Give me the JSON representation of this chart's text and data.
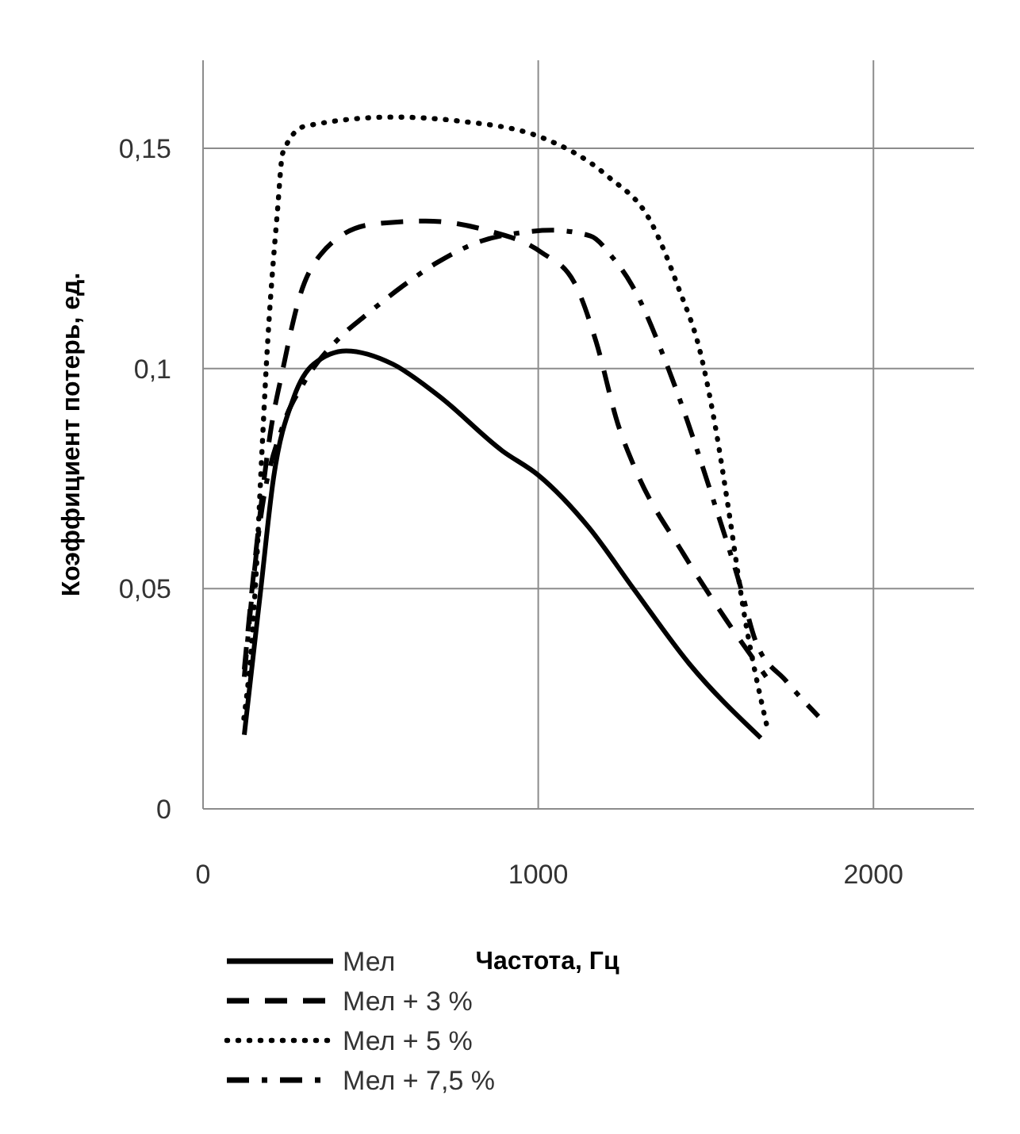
{
  "chart_data": {
    "type": "line",
    "xlabel": "Частота, Гц",
    "ylabel": "Коэффициент потерь, ед.",
    "xlim": [
      0,
      2300
    ],
    "xticks": [
      0,
      1000,
      2000
    ],
    "ylim": [
      0,
      0.17
    ],
    "yticks": [
      0,
      {
        "value": 0.05,
        "label": "0,05"
      },
      {
        "value": 0.1,
        "label": "0,1"
      },
      {
        "value": 0.15,
        "label": "0,15"
      }
    ],
    "grid": true,
    "legend": "bottom",
    "series": [
      {
        "name": "Мел",
        "color": "#000000",
        "line_style": "solid",
        "x": [
          123,
          150,
          172,
          210,
          271,
          330,
          427,
          566,
          700,
          893,
          1000,
          1150,
          1287,
          1450,
          1664
        ],
        "values": [
          0.0168,
          0.035,
          0.0497,
          0.075,
          0.0935,
          0.101,
          0.104,
          0.101,
          0.094,
          0.0813,
          0.0758,
          0.064,
          0.0497,
          0.033,
          0.0161
        ]
      },
      {
        "name": "Мел + 3 %",
        "color": "#000000",
        "line_style": "dashed",
        "x": [
          123,
          160,
          200,
          238,
          287,
          352,
          500,
          664,
          845,
          1009,
          1107,
          1173,
          1238,
          1287,
          1435,
          1560,
          1680
        ],
        "values": [
          0.0317,
          0.06,
          0.085,
          0.0998,
          0.116,
          0.126,
          0.1327,
          0.1335,
          0.1314,
          0.1264,
          0.1196,
          0.106,
          0.0873,
          0.0776,
          0.0577,
          0.043,
          0.03
        ]
      },
      {
        "name": "Мел + 5 %",
        "color": "#000000",
        "line_style": "dotted",
        "x": [
          122,
          140,
          156,
          175,
          189,
          222,
          238,
          303,
          566,
          763,
          1009,
          1205,
          1336,
          1418,
          1484,
          1533,
          1566,
          1615,
          1681
        ],
        "values": [
          0.0206,
          0.033,
          0.0503,
          0.08,
          0.101,
          0.1358,
          0.149,
          0.155,
          0.1571,
          0.1562,
          0.1525,
          0.1438,
          0.1333,
          0.1184,
          0.1035,
          0.0848,
          0.0689,
          0.044,
          0.0192
        ]
      },
      {
        "name": "Мел + 7,5 %",
        "color": "#000000",
        "line_style": "dashdot",
        "x": [
          123,
          170,
          238,
          295,
          410,
          484,
          590,
          697,
          828,
          943,
          1041,
          1156,
          1222,
          1279,
          1386,
          1443,
          1517,
          1599,
          1649,
          1740,
          1836
        ],
        "values": [
          0.03,
          0.065,
          0.087,
          0.096,
          0.1072,
          0.112,
          0.1184,
          0.124,
          0.1289,
          0.1308,
          0.1314,
          0.1301,
          0.1252,
          0.119,
          0.1004,
          0.0885,
          0.0714,
          0.0516,
          0.038,
          0.029,
          0.021
        ]
      }
    ]
  }
}
